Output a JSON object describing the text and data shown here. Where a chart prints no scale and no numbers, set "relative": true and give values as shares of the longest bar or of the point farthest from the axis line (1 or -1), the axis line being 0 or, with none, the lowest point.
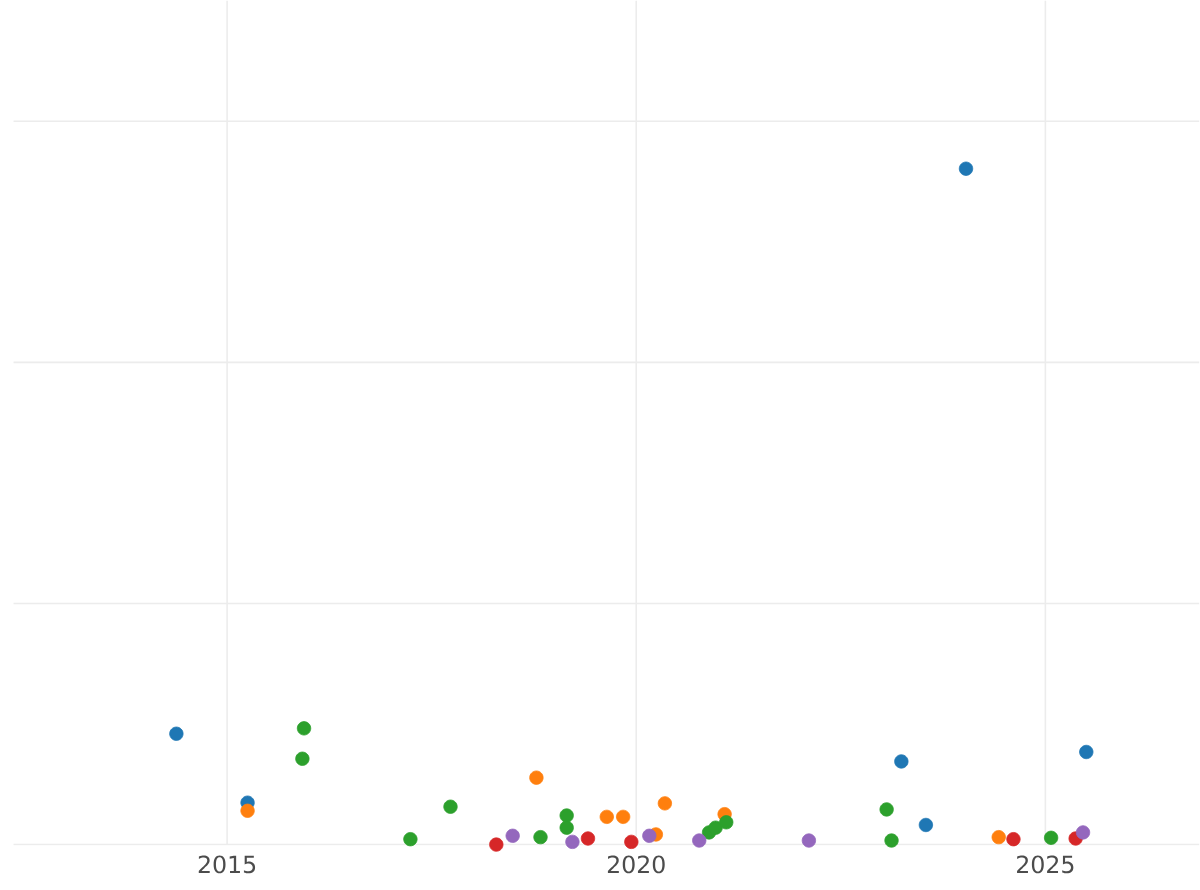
{
  "chart_data": {
    "type": "scatter",
    "relative": true,
    "grid": true,
    "marker": "circle",
    "xlim": [
      2012.39,
      2026.88
    ],
    "xticks": [
      2015,
      2020,
      2025
    ],
    "series": [
      {
        "color": "#1f77b4",
        "x": [
          2014.38,
          2015.25,
          2023.24,
          2023.54,
          2024.03,
          2025.5
        ],
        "values": [
          0.164,
          0.062,
          0.123,
          0.029,
          1,
          0.137
        ]
      },
      {
        "color": "#ff7f0e",
        "x": [
          2015.25,
          2018.45,
          2018.78,
          2019.64,
          2019.84,
          2020.24,
          2020.35,
          2021.08,
          2024.43
        ],
        "values": [
          0.05,
          null,
          0.099,
          0.041,
          0.041,
          0.015,
          0.061,
          0.045,
          0.011
        ]
      },
      {
        "color": "#2ca02c",
        "x": [
          2015.94,
          2015.92,
          2017.24,
          2017.73,
          2018.83,
          2019.15,
          2019.15,
          2020.89,
          2020.97,
          2021.1,
          2023.06,
          2023.12,
          2025.07
        ],
        "values": [
          0.172,
          0.127,
          0.008,
          0.056,
          0.011,
          0.043,
          0.025,
          0.018,
          0.025,
          0.033,
          0.052,
          0.006,
          0.01
        ]
      },
      {
        "color": "#d62728",
        "x": [
          2018.29,
          2019.25,
          2019.41,
          2019.94,
          2024.61,
          2025.37
        ],
        "values": [
          0,
          null,
          0.009,
          0.004,
          0.008,
          0.009
        ]
      },
      {
        "color": "#9467bd",
        "x": [
          2018.49,
          2019.22,
          2020.16,
          2020.77,
          2022.11,
          2025.46
        ],
        "values": [
          0.013,
          0.004,
          0.013,
          0.006,
          0.006,
          0.018
        ]
      }
    ]
  }
}
